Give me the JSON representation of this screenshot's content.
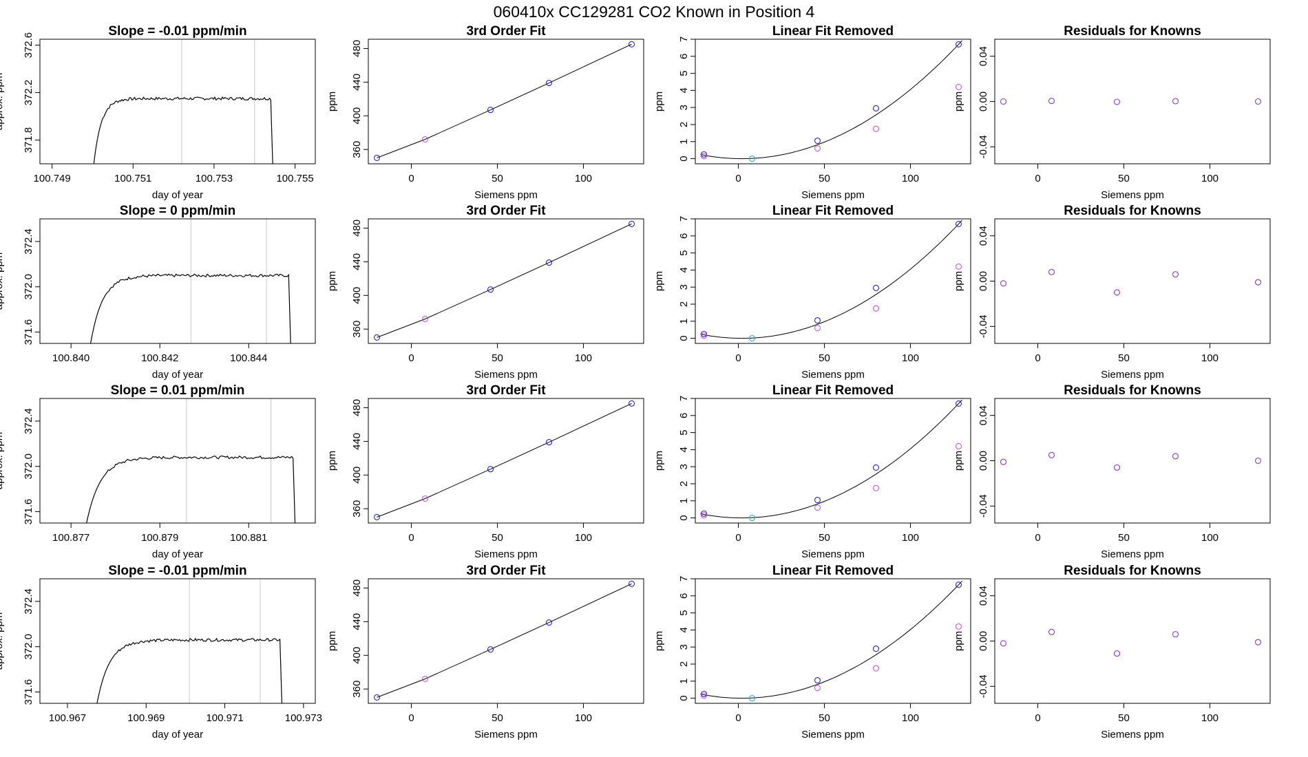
{
  "page_title": "060410x      CC129281    CO2 Known in Position  4",
  "colors": {
    "trace": "#000000",
    "vline": "#c8c8c8",
    "fit_point": "#2222cc",
    "known_point": "#cc55dd",
    "zero_point": "#2aaacc",
    "residual_point": "#8833dd",
    "fit_line": "#000000"
  },
  "chart_data": [
    {
      "type": "line",
      "title": "Slope =  -0.01  ppm/min",
      "xlabel": "day of year",
      "ylabel": "approx. ppm",
      "xlim": [
        100.7487,
        100.7555
      ],
      "ylim": [
        371.6,
        372.65
      ],
      "xticks": [
        "100.749",
        "100.751",
        "100.753",
        "100.755"
      ],
      "yticks": [
        "371.8",
        "372.2",
        "372.6"
      ],
      "vlines": [
        100.7522,
        100.754
      ],
      "trace": {
        "start": 100.75,
        "rise": 100.7502,
        "end": 100.7544,
        "level": 372.15
      }
    },
    {
      "type": "scatter",
      "title": "3rd Order Fit",
      "xlabel": "Siemens ppm",
      "ylabel": "ppm",
      "xlim": [
        -25,
        135
      ],
      "ylim": [
        343,
        491
      ],
      "xticks": [
        "0",
        "50",
        "100"
      ],
      "yticks": [
        "360",
        "400",
        "440",
        "480"
      ],
      "series": [
        {
          "x": [
            -20,
            8,
            46,
            80,
            128
          ],
          "y": [
            350,
            372,
            407,
            439,
            485
          ]
        }
      ]
    },
    {
      "type": "scatter",
      "title": "Linear Fit Removed",
      "xlabel": "Siemens ppm",
      "ylabel": "ppm",
      "xlim": [
        -25,
        135
      ],
      "ylim": [
        -0.3,
        7
      ],
      "xticks": [
        "0",
        "50",
        "100"
      ],
      "yticks": [
        "0",
        "1",
        "2",
        "3",
        "4",
        "5",
        "6",
        "7"
      ],
      "series": [
        {
          "x": [
            -20,
            8,
            46,
            80,
            128
          ],
          "y": [
            0.25,
            0.0,
            1.05,
            2.95,
            6.7
          ]
        },
        {
          "x": [
            -20,
            46,
            80,
            128
          ],
          "y": [
            0.15,
            0.6,
            1.75,
            4.2
          ]
        }
      ]
    },
    {
      "type": "scatter",
      "title": "Residuals for Knowns",
      "xlabel": "Siemens ppm",
      "ylabel": "ppm",
      "xlim": [
        -25,
        135
      ],
      "ylim": [
        -0.055,
        0.055
      ],
      "xticks": [
        "0",
        "50",
        "100"
      ],
      "yticks": [
        "-0.04",
        "0.00",
        "0.04"
      ],
      "series": [
        {
          "x": [
            -20,
            8,
            46,
            80,
            128
          ],
          "y": [
            0.0,
            0.0005,
            -0.0003,
            0.0003,
            0.0
          ]
        }
      ]
    },
    {
      "type": "line",
      "title": "Slope =  0  ppm/min",
      "xlabel": "day of year",
      "ylabel": "approx. ppm",
      "xlim": [
        100.8393,
        100.8455
      ],
      "ylim": [
        371.5,
        372.6
      ],
      "xticks": [
        "100.840",
        "100.842",
        "100.844"
      ],
      "yticks": [
        "371.6",
        "372.0",
        "372.4"
      ],
      "vlines": [
        100.8427,
        100.8444
      ],
      "trace": {
        "start": 100.8404,
        "rise": 100.8408,
        "end": 100.8449,
        "level": 372.1
      }
    },
    {
      "type": "scatter",
      "title": "3rd Order Fit",
      "xlabel": "Siemens ppm",
      "ylabel": "ppm",
      "xlim": [
        -25,
        135
      ],
      "ylim": [
        343,
        491
      ],
      "xticks": [
        "0",
        "50",
        "100"
      ],
      "yticks": [
        "360",
        "400",
        "440",
        "480"
      ],
      "series": [
        {
          "x": [
            -20,
            8,
            46,
            80,
            128
          ],
          "y": [
            350,
            372,
            407,
            439,
            485
          ]
        }
      ]
    },
    {
      "type": "scatter",
      "title": "Linear Fit Removed",
      "xlabel": "Siemens ppm",
      "ylabel": "ppm",
      "xlim": [
        -25,
        135
      ],
      "ylim": [
        -0.3,
        7
      ],
      "xticks": [
        "0",
        "50",
        "100"
      ],
      "yticks": [
        "0",
        "1",
        "2",
        "3",
        "4",
        "5",
        "6",
        "7"
      ],
      "series": [
        {
          "x": [
            -20,
            8,
            46,
            80,
            128
          ],
          "y": [
            0.25,
            0.0,
            1.05,
            2.95,
            6.7
          ]
        },
        {
          "x": [
            -20,
            46,
            80,
            128
          ],
          "y": [
            0.15,
            0.6,
            1.75,
            4.2
          ]
        }
      ]
    },
    {
      "type": "scatter",
      "title": "Residuals for Knowns",
      "xlabel": "Siemens ppm",
      "ylabel": "ppm",
      "xlim": [
        -25,
        135
      ],
      "ylim": [
        -0.055,
        0.055
      ],
      "xticks": [
        "0",
        "50",
        "100"
      ],
      "yticks": [
        "-0.04",
        "0.00",
        "0.04"
      ],
      "series": [
        {
          "x": [
            -20,
            8,
            46,
            80,
            128
          ],
          "y": [
            -0.002,
            0.008,
            -0.01,
            0.006,
            -0.001
          ]
        }
      ]
    },
    {
      "type": "line",
      "title": "Slope =  0.01  ppm/min",
      "xlabel": "day of year",
      "ylabel": "approx. ppm",
      "xlim": [
        100.8763,
        100.8825
      ],
      "ylim": [
        371.5,
        372.6
      ],
      "xticks": [
        "100.877",
        "100.879",
        "100.881"
      ],
      "yticks": [
        "371.6",
        "372.0",
        "372.4"
      ],
      "vlines": [
        100.8796,
        100.8815
      ],
      "trace": {
        "start": 100.8773,
        "rise": 100.8778,
        "end": 100.882,
        "level": 372.08
      }
    },
    {
      "type": "scatter",
      "title": "3rd Order Fit",
      "xlabel": "Siemens ppm",
      "ylabel": "ppm",
      "xlim": [
        -25,
        135
      ],
      "ylim": [
        343,
        491
      ],
      "xticks": [
        "0",
        "50",
        "100"
      ],
      "yticks": [
        "360",
        "400",
        "440",
        "480"
      ],
      "series": [
        {
          "x": [
            -20,
            8,
            46,
            80,
            128
          ],
          "y": [
            350,
            372,
            407,
            439,
            485
          ]
        }
      ]
    },
    {
      "type": "scatter",
      "title": "Linear Fit Removed",
      "xlabel": "Siemens ppm",
      "ylabel": "ppm",
      "xlim": [
        -25,
        135
      ],
      "ylim": [
        -0.3,
        7
      ],
      "xticks": [
        "0",
        "50",
        "100"
      ],
      "yticks": [
        "0",
        "1",
        "2",
        "3",
        "4",
        "5",
        "6",
        "7"
      ],
      "series": [
        {
          "x": [
            -20,
            8,
            46,
            80,
            128
          ],
          "y": [
            0.25,
            0.0,
            1.05,
            2.95,
            6.7
          ]
        },
        {
          "x": [
            -20,
            46,
            80,
            128
          ],
          "y": [
            0.15,
            0.6,
            1.75,
            4.2
          ]
        }
      ]
    },
    {
      "type": "scatter",
      "title": "Residuals for Knowns",
      "xlabel": "Siemens ppm",
      "ylabel": "ppm",
      "xlim": [
        -25,
        135
      ],
      "ylim": [
        -0.055,
        0.055
      ],
      "xticks": [
        "0",
        "50",
        "100"
      ],
      "yticks": [
        "-0.04",
        "0.00",
        "0.04"
      ],
      "series": [
        {
          "x": [
            -20,
            8,
            46,
            80,
            128
          ],
          "y": [
            -0.001,
            0.005,
            -0.006,
            0.004,
            0.0
          ]
        }
      ]
    },
    {
      "type": "line",
      "title": "Slope =  -0.01  ppm/min",
      "xlabel": "day of year",
      "ylabel": "approx. ppm",
      "xlim": [
        100.9663,
        100.9733
      ],
      "ylim": [
        371.5,
        372.6
      ],
      "xticks": [
        "100.967",
        "100.969",
        "100.971",
        "100.973"
      ],
      "yticks": [
        "371.6",
        "372.0",
        "372.4"
      ],
      "vlines": [
        100.9701,
        100.9719
      ],
      "trace": {
        "start": 100.9677,
        "rise": 100.9682,
        "end": 100.9724,
        "level": 372.06
      }
    },
    {
      "type": "scatter",
      "title": "3rd Order Fit",
      "xlabel": "Siemens ppm",
      "ylabel": "ppm",
      "xlim": [
        -25,
        135
      ],
      "ylim": [
        343,
        491
      ],
      "xticks": [
        "0",
        "50",
        "100"
      ],
      "yticks": [
        "360",
        "400",
        "440",
        "480"
      ],
      "series": [
        {
          "x": [
            -20,
            8,
            46,
            80,
            128
          ],
          "y": [
            350,
            372,
            407,
            439,
            485
          ]
        }
      ]
    },
    {
      "type": "scatter",
      "title": "Linear Fit Removed",
      "xlabel": "Siemens ppm",
      "ylabel": "ppm",
      "xlim": [
        -25,
        135
      ],
      "ylim": [
        -0.3,
        7
      ],
      "xticks": [
        "0",
        "50",
        "100"
      ],
      "yticks": [
        "0",
        "1",
        "2",
        "3",
        "4",
        "5",
        "6",
        "7"
      ],
      "series": [
        {
          "x": [
            -20,
            8,
            46,
            80,
            128
          ],
          "y": [
            0.25,
            0.0,
            1.05,
            2.9,
            6.65
          ]
        },
        {
          "x": [
            -20,
            46,
            80,
            128
          ],
          "y": [
            0.15,
            0.6,
            1.75,
            4.2
          ]
        }
      ]
    },
    {
      "type": "scatter",
      "title": "Residuals for Knowns",
      "xlabel": "Siemens ppm",
      "ylabel": "ppm",
      "xlim": [
        -25,
        135
      ],
      "ylim": [
        -0.055,
        0.055
      ],
      "xticks": [
        "0",
        "50",
        "100"
      ],
      "yticks": [
        "-0.04",
        "0.00",
        "0.04"
      ],
      "series": [
        {
          "x": [
            -20,
            8,
            46,
            80,
            128
          ],
          "y": [
            -0.002,
            0.008,
            -0.011,
            0.006,
            -0.001
          ]
        }
      ]
    }
  ]
}
